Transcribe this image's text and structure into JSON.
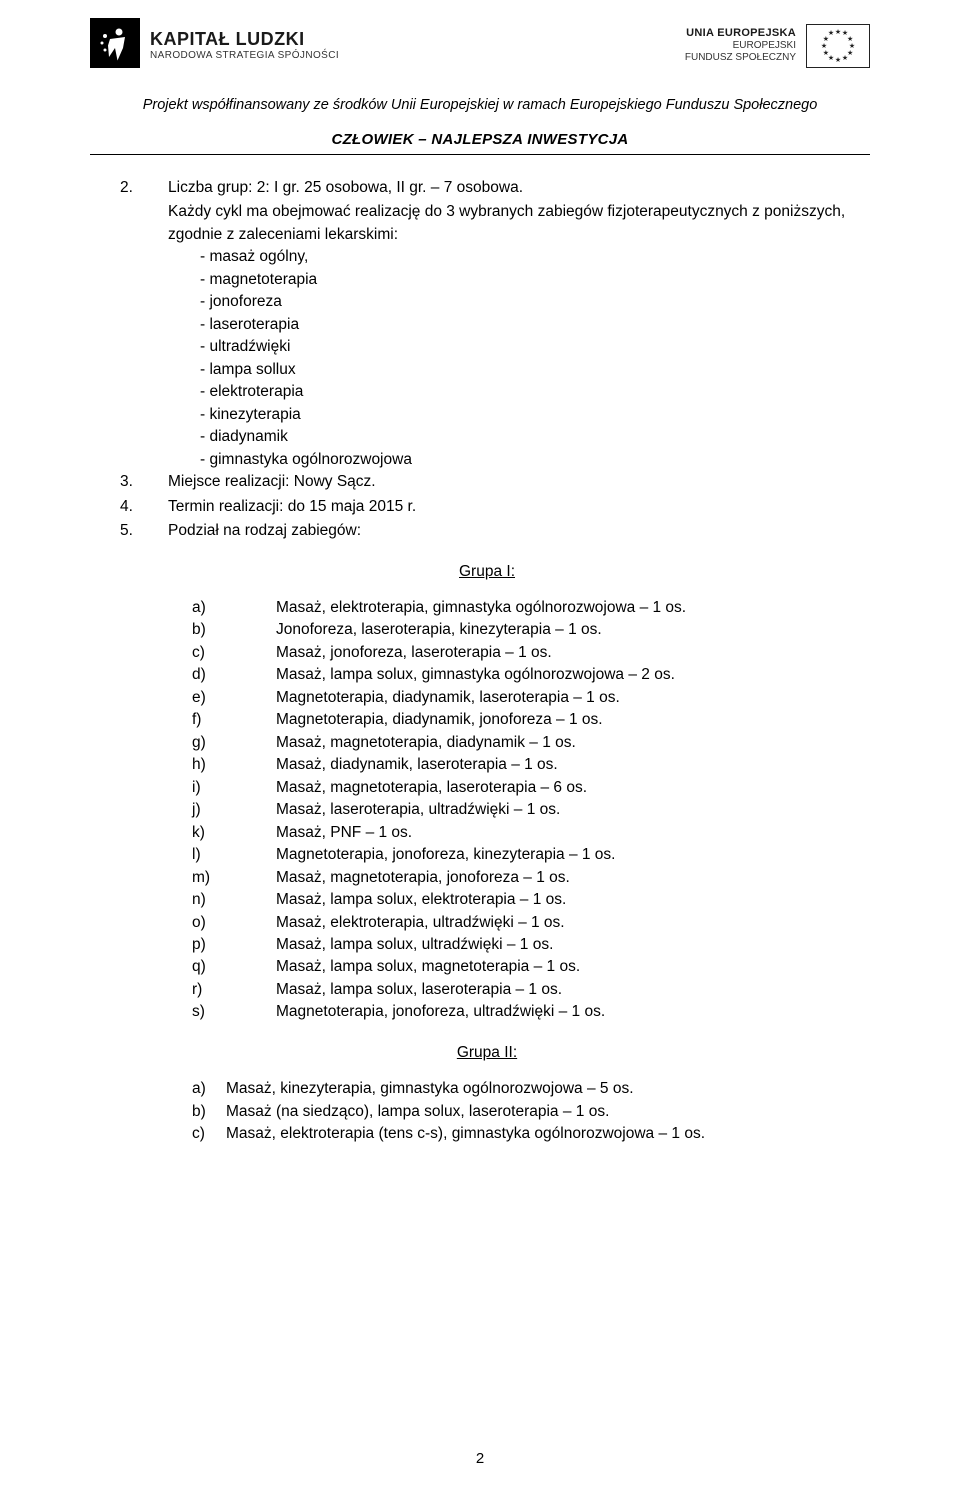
{
  "header": {
    "left_logo": {
      "title": "KAPITAŁ LUDZKI",
      "subtitle": "NARODOWA STRATEGIA SPÓJNOŚCI",
      "icon_color": "#000000"
    },
    "right_logo": {
      "line1": "UNIA EUROPEJSKA",
      "line2": "EUROPEJSKI",
      "line3": "FUNDUSZ SPOŁECZNY",
      "flag_border_color": "#222222",
      "star_color": "#222222"
    }
  },
  "funding_note": "Projekt współfinansowany ze środków Unii Europejskiej w ramach Europejskiego Funduszu Społecznego",
  "slogan": "CZŁOWIEK – NAJLEPSZA INWESTYCJA",
  "list": {
    "item2": {
      "num": "2.",
      "text": "Liczba grup: 2: I gr. 25 osobowa, II gr. – 7 osobowa.",
      "intro": "Każdy cykl ma obejmować realizację do 3 wybranych zabiegów fizjoterapeutycznych z poniższych, zgodnie z zaleceniami lekarskimi:",
      "bullets": [
        "- masaż ogólny,",
        "- magnetoterapia",
        "- jonoforeza",
        "- laseroterapia",
        "- ultradźwięki",
        "- lampa sollux",
        "- elektroterapia",
        "- kinezyterapia",
        "- diadynamik",
        "- gimnastyka ogólnorozwojowa"
      ]
    },
    "item3": {
      "num": "3.",
      "text": "Miejsce realizacji: Nowy Sącz."
    },
    "item4": {
      "num": "4.",
      "text": "Termin realizacji: do 15 maja 2015 r."
    },
    "item5": {
      "num": "5.",
      "text": "Podział na rodzaj zabiegów:"
    }
  },
  "group1": {
    "title": "Grupa I:",
    "rows": [
      {
        "letter": "a)",
        "text": "Masaż, elektroterapia, gimnastyka ogólnorozwojowa – 1 os."
      },
      {
        "letter": "b)",
        "text": "Jonoforeza, laseroterapia, kinezyterapia – 1 os."
      },
      {
        "letter": "c)",
        "text": "Masaż, jonoforeza, laseroterapia – 1 os."
      },
      {
        "letter": "d)",
        "text": "Masaż, lampa solux, gimnastyka ogólnorozwojowa – 2 os."
      },
      {
        "letter": "e)",
        "text": "Magnetoterapia, diadynamik, laseroterapia – 1 os."
      },
      {
        "letter": "f)",
        "text": "Magnetoterapia, diadynamik, jonoforeza – 1 os."
      },
      {
        "letter": "g)",
        "text": "Masaż, magnetoterapia, diadynamik – 1 os."
      },
      {
        "letter": "h)",
        "text": "Masaż, diadynamik, laseroterapia – 1 os."
      },
      {
        "letter": "i)",
        "text": "Masaż, magnetoterapia, laseroterapia – 6 os."
      },
      {
        "letter": "j)",
        "text": "Masaż, laseroterapia, ultradźwięki – 1 os."
      },
      {
        "letter": "k)",
        "text": "Masaż, PNF – 1 os."
      },
      {
        "letter": "l)",
        "text": "Magnetoterapia, jonoforeza, kinezyterapia – 1 os."
      },
      {
        "letter": "m)",
        "text": "Masaż, magnetoterapia, jonoforeza – 1 os."
      },
      {
        "letter": "n)",
        "text": "Masaż, lampa solux, elektroterapia – 1 os."
      },
      {
        "letter": "o)",
        "text": "Masaż, elektroterapia, ultradźwięki – 1 os."
      },
      {
        "letter": "p)",
        "text": "Masaż, lampa solux, ultradźwięki – 1 os."
      },
      {
        "letter": "q)",
        "text": "Masaż, lampa solux, magnetoterapia – 1 os."
      },
      {
        "letter": "r)",
        "text": "Masaż, lampa solux, laseroterapia – 1 os."
      },
      {
        "letter": "s)",
        "text": "Magnetoterapia, jonoforeza, ultradźwięki – 1 os."
      }
    ]
  },
  "group2": {
    "title": "Grupa II:",
    "rows": [
      {
        "letter": "a)",
        "text": "Masaż, kinezyterapia, gimnastyka ogólnorozwojowa – 5 os."
      },
      {
        "letter": "b)",
        "text": "Masaż (na siedząco), lampa solux, laseroterapia – 1 os."
      },
      {
        "letter": "c)",
        "text": "Masaż, elektroterapia (tens c-s), gimnastyka ogólnorozwojowa – 1 os."
      }
    ]
  },
  "page_number": "2",
  "colors": {
    "text": "#000000",
    "background": "#ffffff",
    "rule": "#000000"
  },
  "typography": {
    "body_fontsize_pt": 12,
    "heading_fontsize_pt": 12,
    "font_family": "Arial"
  }
}
